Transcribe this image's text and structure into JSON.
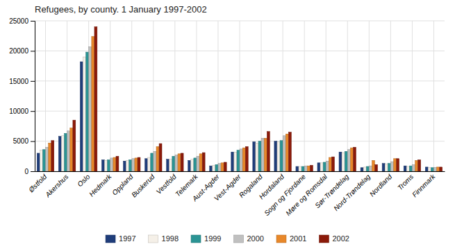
{
  "chart_data": {
    "type": "bar",
    "title": "Refugees, by county. 1 January 1997-2002",
    "categories": [
      "Østfold",
      "Akershus",
      "Oslo",
      "Hedmark",
      "Oppland",
      "Buskerud",
      "Vestfold",
      "Telemark",
      "Aust-Agder",
      "Vest-Agder",
      "Rogaland",
      "Hordaland",
      "Sogn og Fjordane",
      "Møre og Romsdal",
      "Sør-Trøndelag",
      "Nord-Trøndelag",
      "Nordland",
      "Troms",
      "Finnmark"
    ],
    "series": [
      {
        "name": "1997",
        "color": "#1f3d7a",
        "values": [
          3000,
          5800,
          18200,
          1900,
          1700,
          2100,
          2000,
          1800,
          900,
          3200,
          4900,
          5000,
          800,
          1400,
          3200,
          600,
          1300,
          900,
          700
        ]
      },
      {
        "name": "1998",
        "color": "#f5f0e8",
        "values": [
          3500,
          5900,
          19000,
          1800,
          1800,
          2300,
          2000,
          2000,
          1000,
          3200,
          4700,
          4900,
          800,
          1400,
          3100,
          700,
          1200,
          800,
          600
        ]
      },
      {
        "name": "1999",
        "color": "#2b9494",
        "values": [
          3600,
          6300,
          19800,
          1900,
          1900,
          3000,
          2500,
          2200,
          1100,
          3500,
          5000,
          5100,
          800,
          1500,
          3300,
          800,
          1300,
          900,
          600
        ]
      },
      {
        "name": "2000",
        "color": "#c0c0c0",
        "values": [
          4000,
          6700,
          20700,
          2200,
          2100,
          3300,
          2700,
          2500,
          1300,
          3700,
          5500,
          5900,
          900,
          1700,
          3600,
          900,
          1600,
          1100,
          650
        ]
      },
      {
        "name": "2001",
        "color": "#e8882a",
        "values": [
          4700,
          7200,
          22400,
          2300,
          2200,
          4100,
          2900,
          2900,
          1400,
          3900,
          5500,
          6200,
          900,
          2300,
          3900,
          1800,
          2100,
          1800,
          700
        ]
      },
      {
        "name": "2002",
        "color": "#8b1a0a",
        "values": [
          5100,
          8500,
          24000,
          2500,
          2300,
          4600,
          3000,
          3100,
          1500,
          4100,
          6600,
          6500,
          1000,
          2400,
          4000,
          1100,
          2100,
          1900,
          700
        ]
      }
    ],
    "ylim": [
      0,
      25000
    ],
    "yticks": [
      0,
      5000,
      10000,
      15000,
      20000,
      25000
    ],
    "grid": true,
    "legend": "bottom"
  }
}
